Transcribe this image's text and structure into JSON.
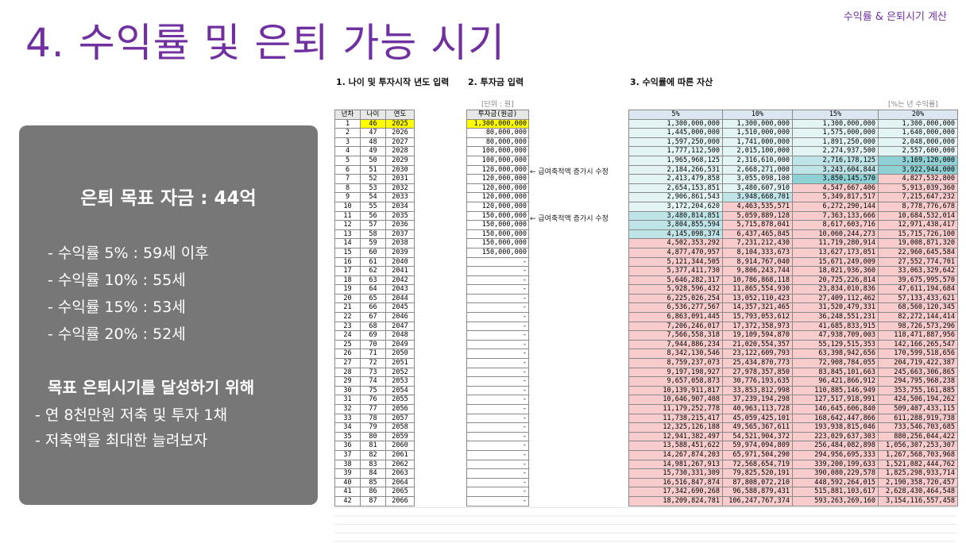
{
  "slide": {
    "title": "4. 수익률 및 은퇴 가능 시기",
    "corner_label": "수익률 & 은퇴시기 계산"
  },
  "panel": {
    "goal": "은퇴 목표 자금 : 44억",
    "lines": [
      "- 수익률   5% : 59세 이후",
      "- 수익률 10% : 55세",
      "- 수익률 15% : 53세",
      "- 수익률 20% : 52세"
    ],
    "subheading": "목표 은퇴시기를 달성하기 위해",
    "sublines": [
      "- 연 8천만원 저축 및 투자 1채",
      "- 저축액을 최대한 늘려보자"
    ]
  },
  "sheet": {
    "section1": "1. 나이 및 투자시작 년도 입력",
    "section2": "2. 투자금 입력",
    "section3": "3. 수익률에 따른 자산",
    "unit_won": "[단위 : 원]",
    "unit_rate": "[%는 년 수익률]",
    "headers1": [
      "년차",
      "나이",
      "연도"
    ],
    "header2": "투자금(원금)",
    "headers3": [
      "5%",
      "10%",
      "15%",
      "20%"
    ],
    "note": "← 급여축적액 증가시 수정",
    "years": [
      1,
      2,
      3,
      4,
      5,
      6,
      7,
      8,
      9,
      10,
      11,
      12,
      13,
      14,
      15,
      16,
      17,
      18,
      19,
      20,
      21,
      22,
      23,
      24,
      25,
      26,
      27,
      28,
      29,
      30,
      31,
      32,
      33,
      34,
      35,
      36,
      37,
      38,
      39,
      40,
      41,
      42
    ],
    "ages": [
      46,
      47,
      48,
      49,
      50,
      51,
      52,
      53,
      54,
      55,
      56,
      57,
      58,
      59,
      60,
      61,
      62,
      63,
      64,
      65,
      66,
      67,
      68,
      69,
      70,
      71,
      72,
      73,
      74,
      75,
      76,
      77,
      78,
      79,
      80,
      81,
      82,
      83,
      84,
      85,
      86,
      87
    ],
    "calendar": [
      2025,
      2026,
      2027,
      2028,
      2029,
      2030,
      2031,
      2032,
      2033,
      2034,
      2035,
      2036,
      2037,
      2038,
      2039,
      2040,
      2041,
      2042,
      2043,
      2044,
      2045,
      2046,
      2047,
      2048,
      2049,
      2050,
      2051,
      2052,
      2053,
      2054,
      2055,
      2056,
      2057,
      2058,
      2059,
      2060,
      2061,
      2062,
      2063,
      2064,
      2065,
      2066
    ],
    "investment": [
      "1,300,000,000",
      "80,000,000",
      "80,000,000",
      "100,000,000",
      "100,000,000",
      "120,000,000",
      "120,000,000",
      "120,000,000",
      "120,000,000",
      "120,000,000",
      "150,000,000",
      "150,000,000",
      "150,000,000",
      "150,000,000",
      "150,000,000",
      "-",
      "-",
      "-",
      "-",
      "-",
      "-",
      "-",
      "-",
      "-",
      "-",
      "-",
      "-",
      "-",
      "-",
      "-",
      "-",
      "-",
      "-",
      "-",
      "-",
      "-",
      "-",
      "-",
      "-",
      "-",
      "-",
      "-"
    ],
    "r5": [
      "1,300,000,000",
      "1,445,000,000",
      "1,597,250,000",
      "1,777,112,500",
      "1,965,968,125",
      "2,184,266,531",
      "2,413,479,858",
      "2,654,153,851",
      "2,906,861,543",
      "3,172,204,620",
      "3,480,814,851",
      "3,804,855,594",
      "4,145,098,374",
      "4,502,353,292",
      "4,877,470,957",
      "5,121,344,505",
      "5,377,411,730",
      "5,646,282,317",
      "5,928,596,432",
      "6,225,026,254",
      "6,536,277,567",
      "6,863,091,445",
      "7,206,246,017",
      "7,566,558,318",
      "7,944,886,234",
      "8,342,130,546",
      "8,759,237,073",
      "9,197,198,927",
      "9,657,058,873",
      "10,139,911,817",
      "10,646,907,408",
      "11,179,252,778",
      "11,738,215,417",
      "12,325,126,188",
      "12,941,382,497",
      "13,588,451,622",
      "14,267,874,203",
      "14,981,267,913",
      "15,730,331,309",
      "16,516,847,874",
      "17,342,690,268",
      "18,209,824,781"
    ],
    "r10": [
      "1,300,000,000",
      "1,510,000,000",
      "1,741,000,000",
      "2,015,100,000",
      "2,316,610,000",
      "2,668,271,000",
      "3,055,098,100",
      "3,480,607,910",
      "3,948,668,701",
      "4,463,535,571",
      "5,059,889,128",
      "5,715,878,041",
      "6,437,465,845",
      "7,231,212,430",
      "8,104,333,673",
      "8,914,767,040",
      "9,806,243,744",
      "10,786,868,118",
      "11,865,554,930",
      "13,052,110,423",
      "14,357,321,465",
      "15,793,053,612",
      "17,372,358,973",
      "19,109,594,870",
      "21,020,554,357",
      "23,122,609,793",
      "25,434,870,773",
      "27,978,357,850",
      "30,776,193,635",
      "33,853,812,998",
      "37,239,194,298",
      "40,963,113,728",
      "45,059,425,101",
      "49,565,367,611",
      "54,521,904,372",
      "59,974,094,809",
      "65,971,504,290",
      "72,568,654,719",
      "79,825,520,191",
      "87,808,072,210",
      "96,588,879,431",
      "106,247,767,374"
    ],
    "r15": [
      "1,300,000,000",
      "1,575,000,000",
      "1,891,250,000",
      "2,274,937,500",
      "2,716,178,125",
      "3,243,604,844",
      "3,850,145,570",
      "4,547,667,406",
      "5,349,817,517",
      "6,272,290,144",
      "7,363,133,666",
      "8,617,603,716",
      "10,060,244,273",
      "11,719,280,914",
      "13,627,173,051",
      "15,671,249,009",
      "18,021,936,360",
      "20,725,226,814",
      "23,834,010,836",
      "27,409,112,462",
      "31,520,479,331",
      "36,248,551,231",
      "41,685,833,915",
      "47,938,709,003",
      "55,129,515,353",
      "63,398,942,656",
      "72,908,784,055",
      "83,845,101,663",
      "96,421,866,912",
      "110,885,146,949",
      "127,517,918,991",
      "146,645,606,840",
      "168,642,447,866",
      "193,938,815,046",
      "223,029,637,303",
      "256,484,082,898",
      "294,956,695,333",
      "339,200,199,633",
      "390,080,229,578",
      "448,592,264,015",
      "515,881,103,617",
      "593,263,269,160"
    ],
    "r20": [
      "1,300,000,000",
      "1,640,000,000",
      "2,048,000,000",
      "2,557,600,000",
      "3,169,120,000",
      "3,922,944,000",
      "4,827,532,800",
      "5,913,039,360",
      "7,215,647,232",
      "8,778,776,678",
      "10,684,532,014",
      "12,971,438,417",
      "15,715,726,100",
      "19,008,871,320",
      "22,960,645,584",
      "27,552,774,701",
      "33,063,329,642",
      "39,675,995,570",
      "47,611,194,684",
      "57,133,433,621",
      "68,560,120,345",
      "82,272,144,414",
      "98,726,573,296",
      "118,471,887,956",
      "142,166,265,547",
      "170,599,518,656",
      "204,719,422,387",
      "245,663,306,865",
      "294,795,968,238",
      "353,755,161,885",
      "424,506,194,262",
      "509,407,433,115",
      "611,288,919,738",
      "733,546,703,685",
      "880,256,044,422",
      "1,056,307,253,307",
      "1,267,568,703,968",
      "1,521,082,444,762",
      "1,825,298,933,714",
      "2,190,358,720,457",
      "2,628,430,464,548",
      "3,154,116,557,458"
    ]
  }
}
